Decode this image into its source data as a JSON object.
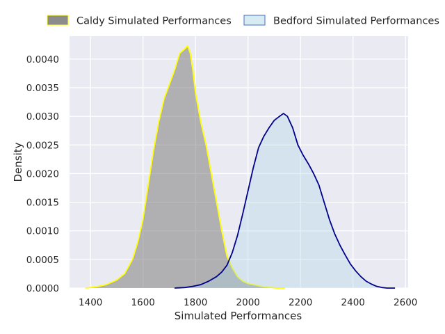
{
  "chart_data": {
    "type": "area",
    "xlabel": "Simulated Performances",
    "ylabel": "Density",
    "xlim": [
      1320,
      2610
    ],
    "ylim": [
      0,
      0.0044
    ],
    "x_ticks": [
      1400,
      1600,
      1800,
      2000,
      2200,
      2400,
      2600
    ],
    "y_ticks": [
      0.0,
      0.0005,
      0.001,
      0.0015,
      0.002,
      0.0025,
      0.003,
      0.0035,
      0.004
    ],
    "x_tick_labels": [
      "1400",
      "1600",
      "1800",
      "2000",
      "2200",
      "2400",
      "2600"
    ],
    "y_tick_labels": [
      "0.0000",
      "0.0005",
      "0.0010",
      "0.0015",
      "0.0020",
      "0.0025",
      "0.0030",
      "0.0035",
      "0.0040"
    ],
    "grid": true,
    "legend_position": "top",
    "series": [
      {
        "name": "Caldy Simulated Performances",
        "fill_color": "#808080",
        "fill_opacity": 0.55,
        "line_color": "#ffff00",
        "x": [
          1380,
          1420,
          1460,
          1500,
          1530,
          1560,
          1580,
          1600,
          1620,
          1640,
          1660,
          1680,
          1700,
          1720,
          1740,
          1760,
          1770,
          1780,
          1790,
          1800,
          1820,
          1840,
          1860,
          1880,
          1900,
          1920,
          1940,
          1960,
          1980,
          2000,
          2030,
          2060,
          2090,
          2110,
          2140
        ],
        "y": [
          0.0,
          2e-05,
          6e-05,
          0.00014,
          0.00025,
          0.0005,
          0.0008,
          0.0012,
          0.0018,
          0.0024,
          0.0029,
          0.0033,
          0.00355,
          0.0038,
          0.0041,
          0.00418,
          0.00423,
          0.0041,
          0.0038,
          0.0034,
          0.0029,
          0.0025,
          0.002,
          0.0015,
          0.001,
          0.00055,
          0.00035,
          0.0002,
          0.00012,
          8e-05,
          5e-05,
          2e-05,
          1e-05,
          0.0,
          0.0
        ]
      },
      {
        "name": "Bedford Simulated Performances",
        "fill_color": "#add8e6",
        "fill_opacity": 0.35,
        "line_color": "#00008b",
        "x": [
          1720,
          1760,
          1790,
          1820,
          1850,
          1880,
          1900,
          1920,
          1940,
          1960,
          1980,
          2000,
          2020,
          2040,
          2060,
          2080,
          2100,
          2120,
          2135,
          2150,
          2170,
          2190,
          2210,
          2230,
          2250,
          2270,
          2290,
          2310,
          2330,
          2350,
          2370,
          2390,
          2410,
          2430,
          2450,
          2470,
          2490,
          2510,
          2530,
          2560
        ],
        "y": [
          0.0,
          1e-05,
          3e-05,
          6e-05,
          0.00012,
          0.0002,
          0.00028,
          0.0004,
          0.00062,
          0.00092,
          0.0013,
          0.0017,
          0.0021,
          0.00245,
          0.00265,
          0.0028,
          0.00293,
          0.003,
          0.00305,
          0.003,
          0.0028,
          0.0025,
          0.00232,
          0.00217,
          0.002,
          0.0018,
          0.0015,
          0.0012,
          0.00095,
          0.00075,
          0.00058,
          0.00042,
          0.0003,
          0.0002,
          0.00012,
          7e-05,
          3e-05,
          1e-05,
          0.0,
          0.0
        ]
      }
    ]
  }
}
